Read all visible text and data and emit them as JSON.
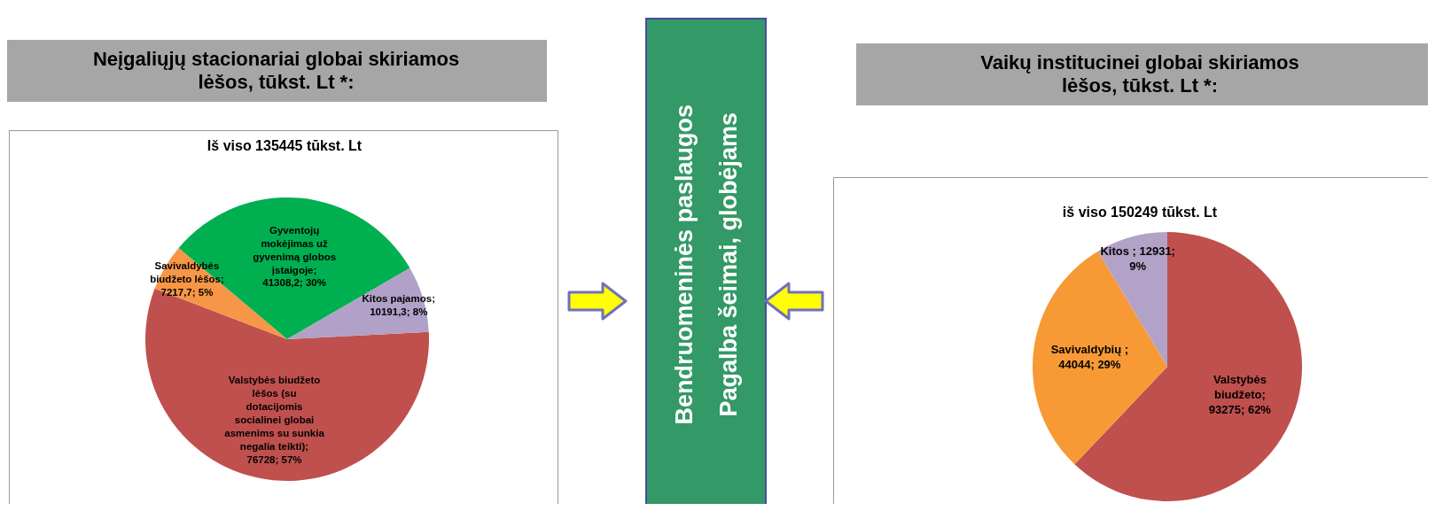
{
  "chart_data": [
    {
      "type": "pie",
      "title": "Neįgaliųjų stacionariai globai skiriamos lėšos, tūkst. Lt *:",
      "subtitle": "Iš viso 135445 tūkst. Lt",
      "categories": [
        "Valstybės biudžeto lėšos (su dotacijomis socialinei globai asmenims su sunkia negalia teikti); 76728; 57%",
        "Savivaldybės biudžeto lėšos; 7217,7; 5%",
        "Gyventojų mokėjimas už gyvenimą globos įstaigoje; 41308,2; 30%",
        "Kitos pajamos; 10191,3; 8%"
      ],
      "values": [
        76728,
        7217.7,
        41308.2,
        10191.3
      ],
      "colors": [
        "#c0504d",
        "#f79646",
        "#00b050",
        "#b1a0c7"
      ]
    },
    {
      "type": "other",
      "annotations": [
        "Bendruomeninės paslaugos",
        "Pagalba šeimai, globėjams"
      ]
    },
    {
      "type": "pie",
      "title": "Vaikų institucinei globai skiriamos lėšos, tūkst. Lt *:",
      "subtitle": "iš viso 150249 tūkst. Lt",
      "categories": [
        "Valstybės biudžeto; 93275; 62%",
        "Savivaldybių ; 44044; 29%",
        "Kitos ; 12931; 9%"
      ],
      "values": [
        93275,
        44044,
        12931
      ],
      "colors": [
        "#c0504d",
        "#f79a36",
        "#b3a2c7"
      ]
    }
  ]
}
